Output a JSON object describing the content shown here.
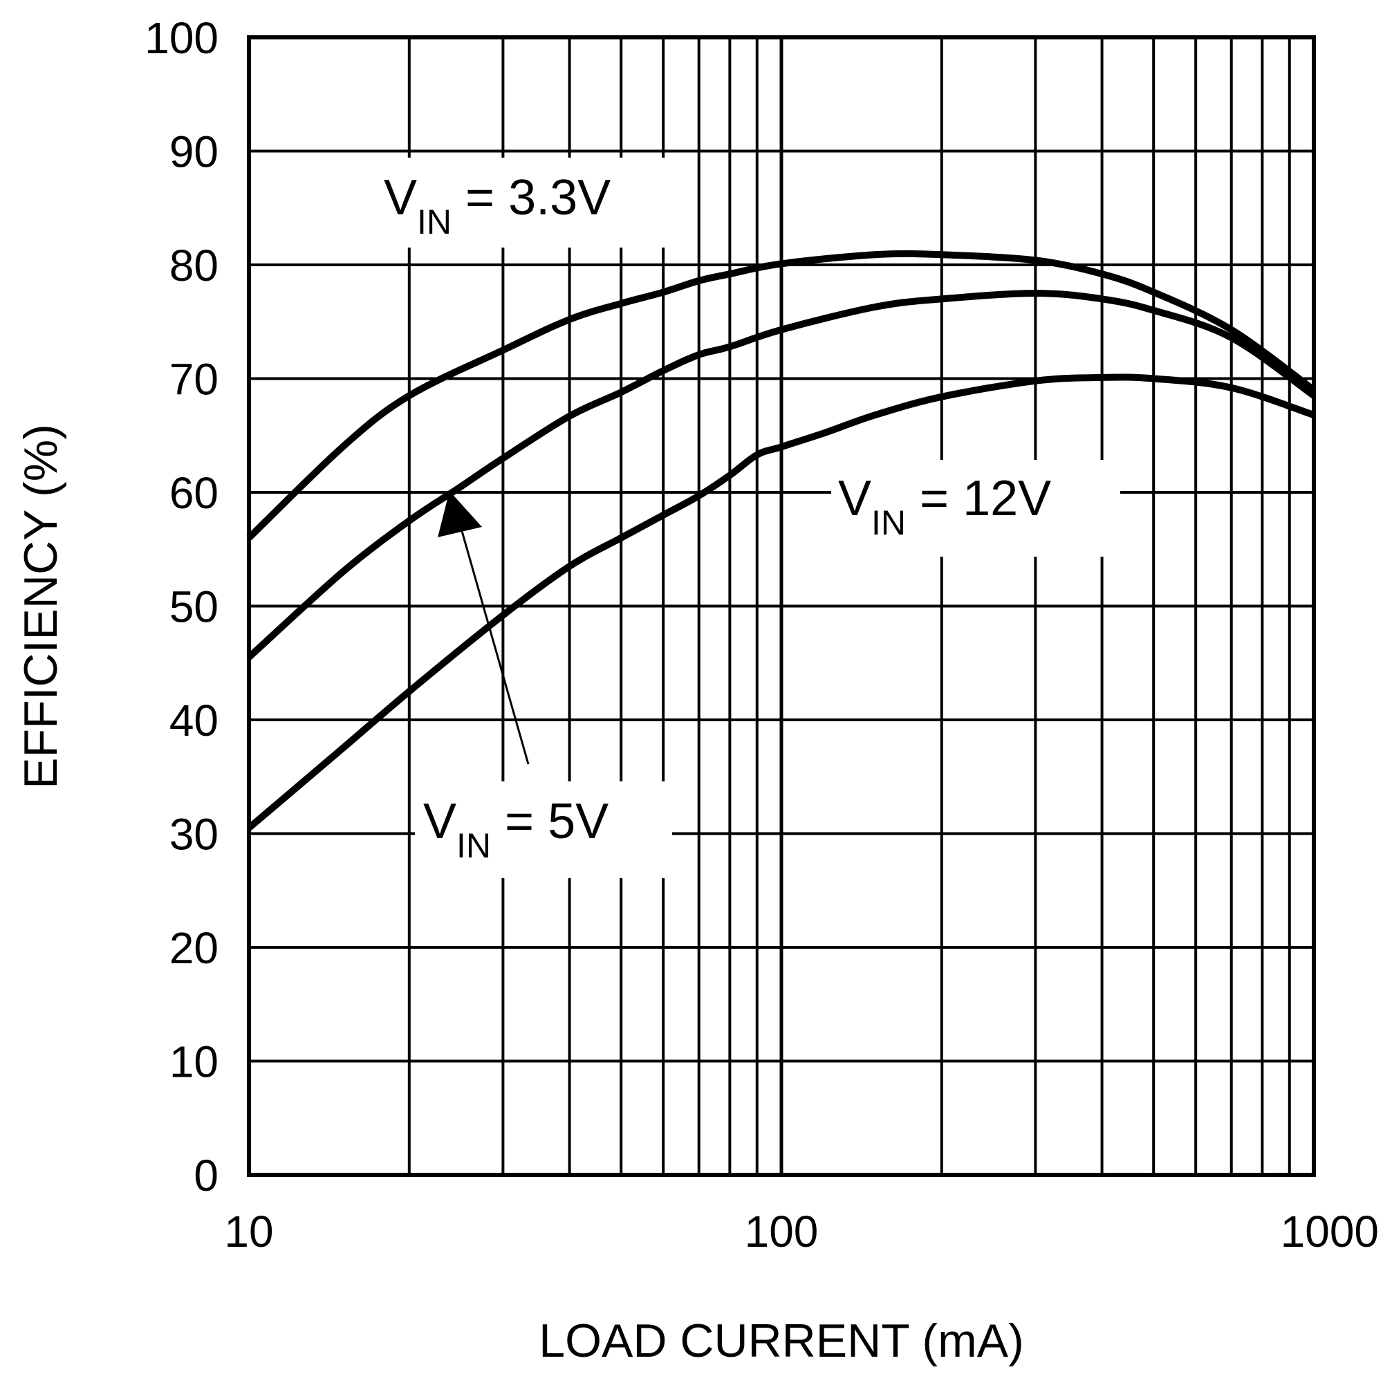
{
  "chart_data": {
    "type": "line",
    "xlabel": "LOAD CURRENT (mA)",
    "ylabel": "EFFICIENCY (%)",
    "x_scale": "log",
    "xlim": [
      10,
      1000
    ],
    "ylim": [
      0,
      100
    ],
    "grid": true,
    "x_ticks": [
      10,
      100,
      1000
    ],
    "x_tick_labels": [
      "10",
      "100",
      "1000"
    ],
    "y_ticks": [
      0,
      10,
      20,
      30,
      40,
      50,
      60,
      70,
      80,
      90,
      100
    ],
    "y_tick_labels": [
      "0",
      "10",
      "20",
      "30",
      "40",
      "50",
      "60",
      "70",
      "80",
      "90",
      "100"
    ],
    "series": [
      {
        "name": "VIN = 3.3V",
        "x": [
          10,
          15,
          20,
          30,
          40,
          50,
          60,
          70,
          80,
          100,
          150,
          200,
          300,
          400,
          500,
          700,
          1000
        ],
        "y": [
          56,
          64,
          68.5,
          72.5,
          75.2,
          76.6,
          77.6,
          78.6,
          79.2,
          80.1,
          80.9,
          80.9,
          80.4,
          79.2,
          77.6,
          74.3,
          69
        ]
      },
      {
        "name": "VIN = 5V",
        "x": [
          10,
          15,
          20,
          25,
          30,
          40,
          50,
          60,
          70,
          80,
          100,
          150,
          200,
          300,
          400,
          500,
          700,
          1000
        ],
        "y": [
          45.5,
          53,
          57.5,
          60.5,
          63,
          66.7,
          68.8,
          70.7,
          72.1,
          72.8,
          74.3,
          76.3,
          77,
          77.5,
          77,
          76,
          73.6,
          68.5
        ]
      },
      {
        "name": "VIN = 12V",
        "x": [
          10,
          15,
          20,
          30,
          40,
          50,
          60,
          70,
          80,
          90,
          100,
          120,
          150,
          200,
          300,
          400,
          500,
          700,
          1000
        ],
        "y": [
          30.5,
          37.5,
          42.5,
          49.2,
          53.5,
          56,
          58,
          59.7,
          61.5,
          63.3,
          64,
          65.2,
          66.8,
          68.4,
          69.8,
          70.1,
          70,
          69.2,
          66.8
        ]
      }
    ],
    "annotations": [
      {
        "id": "vin33",
        "main": "V",
        "sub": "IN",
        "rest": " = 3.3V"
      },
      {
        "id": "vin12",
        "main": "V",
        "sub": "IN",
        "rest": " = 12V"
      },
      {
        "id": "vin5",
        "main": "V",
        "sub": "IN",
        "rest": " = 5V"
      }
    ]
  }
}
